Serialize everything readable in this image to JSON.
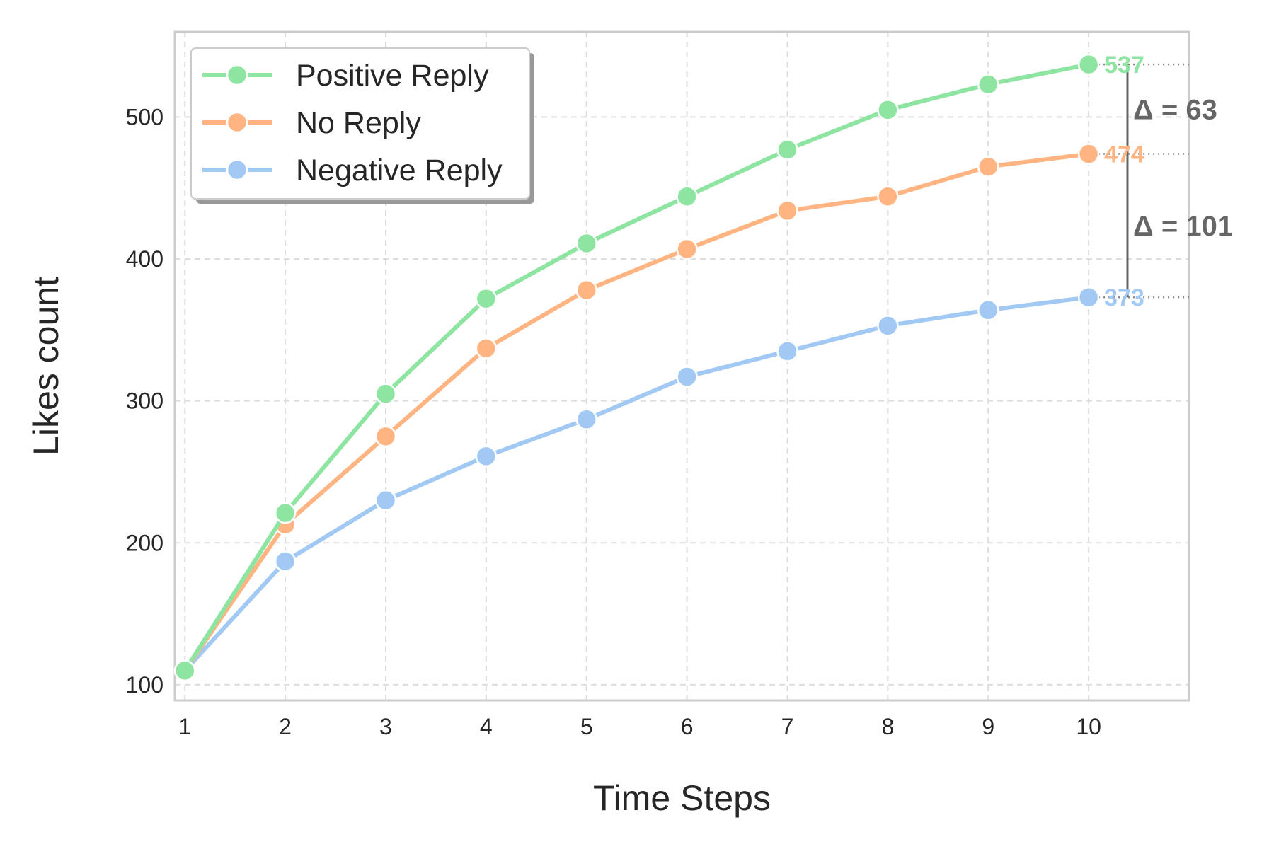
{
  "chart_data": {
    "type": "line",
    "title": "",
    "xlabel": "Time Steps",
    "ylabel": "Likes count",
    "x": [
      1,
      2,
      3,
      4,
      5,
      6,
      7,
      8,
      9,
      10
    ],
    "xlim": [
      0.9,
      11.0
    ],
    "ylim": [
      89,
      560
    ],
    "xticks": [
      1,
      2,
      3,
      4,
      5,
      6,
      7,
      8,
      9,
      10
    ],
    "yticks": [
      100,
      200,
      300,
      400,
      500
    ],
    "grid": true,
    "legend_position": "top-left",
    "series": [
      {
        "name": "Positive Reply",
        "color": "#8de5a1",
        "values": [
          110,
          221,
          305,
          372,
          411,
          444,
          477,
          505,
          523,
          537
        ]
      },
      {
        "name": "No Reply",
        "color": "#ffb482",
        "values": [
          110,
          213,
          275,
          337,
          378,
          407,
          434,
          444,
          465,
          474
        ]
      },
      {
        "name": "Negative Reply",
        "color": "#a1c9f4",
        "values": [
          110,
          187,
          230,
          261,
          287,
          317,
          335,
          353,
          364,
          373
        ]
      }
    ],
    "end_labels": [
      "537",
      "474",
      "373"
    ],
    "annotations": [
      {
        "text": "Δ = 63",
        "from": 474,
        "to": 537
      },
      {
        "text": "Δ = 101",
        "from": 373,
        "to": 474
      }
    ]
  }
}
